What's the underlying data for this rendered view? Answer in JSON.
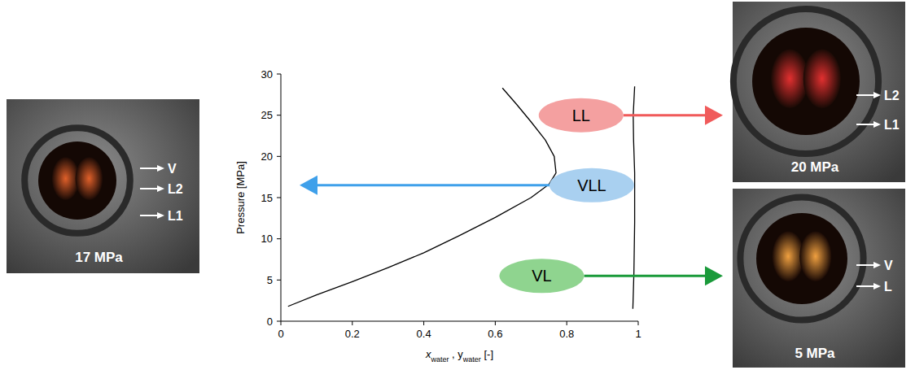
{
  "chart_data": {
    "type": "line",
    "xlabel": "xwater , ywater [-]",
    "ylabel": "Pressure [MPa]",
    "xlim": [
      0,
      1
    ],
    "xticks": [
      0,
      0.2,
      0.4,
      0.6,
      0.8,
      1
    ],
    "ylim": [
      0,
      30
    ],
    "yticks": [
      0,
      5,
      10,
      15,
      20,
      25,
      30
    ],
    "series": [
      {
        "color": "#000000",
        "x": [
          0.02,
          0.1,
          0.2,
          0.3,
          0.4,
          0.5,
          0.6,
          0.7,
          0.75,
          0.77,
          0.765,
          0.74,
          0.7,
          0.66,
          0.62
        ],
        "values": [
          1.8,
          3.2,
          4.8,
          6.5,
          8.3,
          10.4,
          12.6,
          15.0,
          16.6,
          18.0,
          20.0,
          22.0,
          24.2,
          26.3,
          28.3
        ]
      },
      {
        "color": "#000000",
        "x": [
          0.985,
          0.988,
          0.99,
          0.99,
          0.987,
          0.986,
          0.99
        ],
        "values": [
          1.5,
          6,
          12,
          18,
          22,
          25,
          28.5
        ]
      }
    ],
    "annotations": [
      {
        "text": "LL",
        "x": 0.84,
        "y": 25,
        "color": "#f4a0a0"
      },
      {
        "text": "VLL",
        "x": 0.87,
        "y": 16.5,
        "color": "#a9d0f0"
      },
      {
        "text": "VL",
        "x": 0.73,
        "y": 5.5,
        "color": "#8fd48f"
      }
    ]
  },
  "photos": [
    {
      "caption": "17 MPa",
      "labels": [
        "V",
        "L2",
        "L1"
      ]
    },
    {
      "caption": "20 MPa",
      "labels": [
        "L2",
        "L1"
      ]
    },
    {
      "caption": "5 MPa",
      "labels": [
        "V",
        "L"
      ]
    }
  ]
}
